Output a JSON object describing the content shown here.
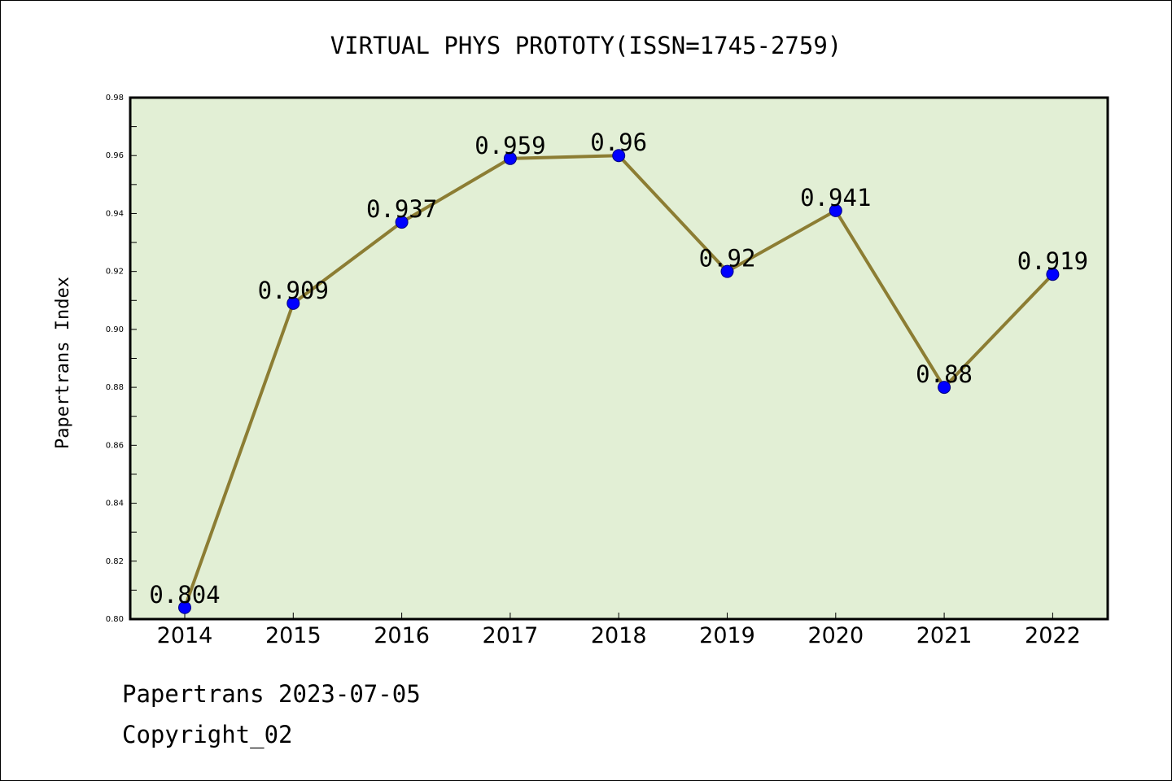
{
  "chart_data": {
    "type": "line",
    "title": "VIRTUAL PHYS PROTOTY(ISSN=1745-2759)",
    "xlabel": "",
    "ylabel": "Papertrans Index",
    "x": [
      "2014",
      "2015",
      "2016",
      "2017",
      "2018",
      "2019",
      "2020",
      "2021",
      "2022"
    ],
    "series": [
      {
        "values": [
          0.804,
          0.909,
          0.937,
          0.959,
          0.96,
          0.92,
          0.941,
          0.88,
          0.919
        ],
        "labels": [
          "0.804",
          "0.909",
          "0.937",
          "0.959",
          "0.96",
          "0.92",
          "0.941",
          "0.88",
          "0.919"
        ]
      }
    ],
    "ylim": [
      0.8,
      0.98
    ],
    "yticks": [
      "0.80",
      "0.82",
      "0.84",
      "0.86",
      "0.88",
      "0.90",
      "0.92",
      "0.94",
      "0.96",
      "0.98"
    ],
    "grid": false,
    "legend": "none"
  },
  "colors": {
    "plot_background": "#e2efd5",
    "line": "#8c7d33",
    "marker": "#0000ff",
    "axis": "#000000"
  },
  "footer": {
    "date_line": "Papertrans 2023-07-05",
    "copyright_line": "Copyright_02"
  }
}
